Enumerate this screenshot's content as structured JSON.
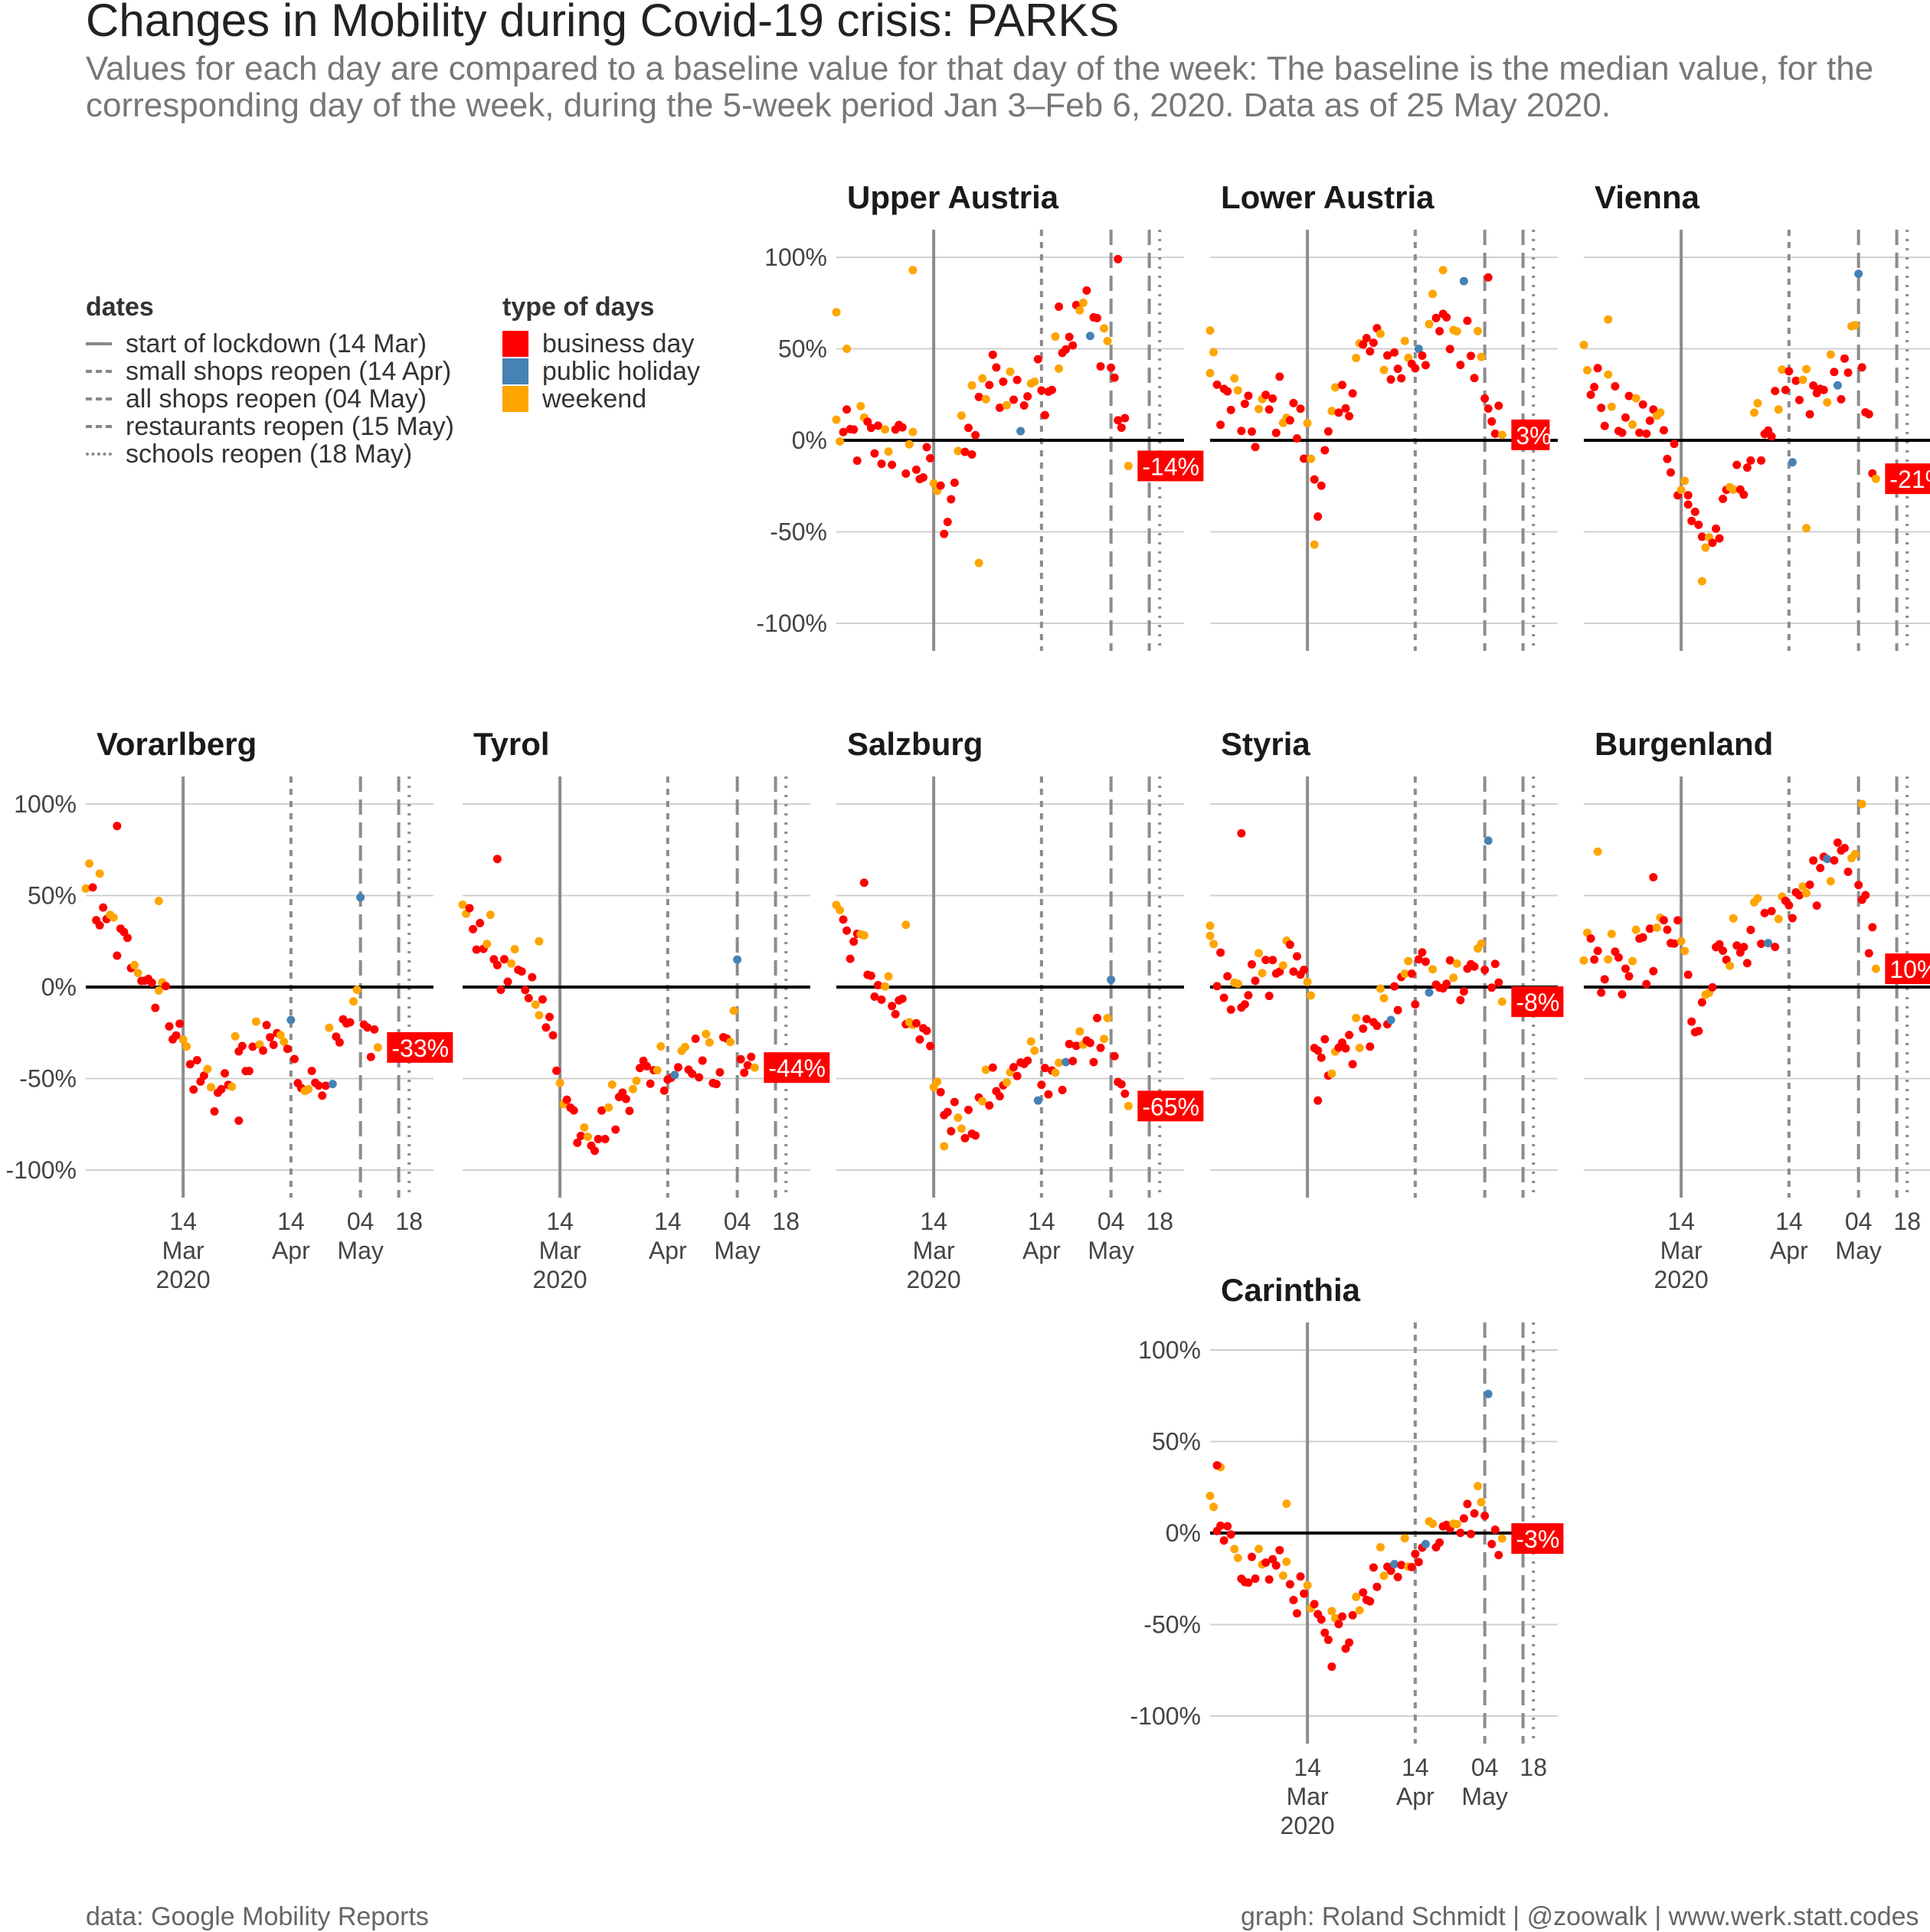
{
  "title": "Changes in Mobility during Covid-19 crisis: PARKS",
  "subtitle_line1": "Values for each day are compared to a baseline value for that day of the week: The baseline is the median value, for the",
  "subtitle_line2": "corresponding day of the week, during the 5-week period Jan 3–Feb 6, 2020. Data as of 25 May 2020.",
  "legend_dates": {
    "title": "dates",
    "items": [
      {
        "label": "start of lockdown (14 Mar)",
        "style": "solid"
      },
      {
        "label": "small shops reopen (14 Apr)",
        "style": "dashed"
      },
      {
        "label": "all shops reopen (04 May)",
        "style": "longdash"
      },
      {
        "label": "restaurants reopen (15 May)",
        "style": "longdash"
      },
      {
        "label": "schools reopen (18 May)",
        "style": "dotted"
      }
    ]
  },
  "legend_days": {
    "title": "type of days",
    "items": [
      {
        "label": "business day",
        "color": "#ff0000"
      },
      {
        "label": "public holiday",
        "color": "#4682b4"
      },
      {
        "label": "weekend",
        "color": "#ffa500"
      }
    ]
  },
  "caption_left": "data: Google Mobility Reports",
  "caption_right": "graph: Roland Schmidt | @zoowalk | www.werk.statt.codes",
  "chart_data": {
    "type": "scatter",
    "x_axis": {
      "range": [
        "2020-02-15",
        "2020-05-25"
      ],
      "ticks": [
        {
          "date": "2020-03-14",
          "lines": [
            "14",
            "Mar",
            "2020"
          ]
        },
        {
          "date": "2020-04-14",
          "lines": [
            "14",
            "Apr"
          ]
        },
        {
          "date": "2020-05-04",
          "lines": [
            "04",
            "May"
          ]
        },
        {
          "date": "2020-05-18",
          "lines": [
            "18"
          ]
        }
      ]
    },
    "y_axis": {
      "range": [
        -1.0,
        1.0
      ],
      "ticks": [
        {
          "value": 1.0,
          "label": "100%"
        },
        {
          "value": 0.5,
          "label": "50%"
        },
        {
          "value": 0.0,
          "label": "0%"
        },
        {
          "value": -0.5,
          "label": "-50%"
        },
        {
          "value": -1.0,
          "label": "-100%"
        }
      ]
    },
    "event_lines": [
      {
        "date": "2020-03-14",
        "style": "solid"
      },
      {
        "date": "2020-04-14",
        "style": "dashed"
      },
      {
        "date": "2020-05-04",
        "style": "longdash"
      },
      {
        "date": "2020-05-15",
        "style": "longdash"
      },
      {
        "date": "2020-05-18",
        "style": "dotted"
      }
    ],
    "day_type_colors": {
      "business day": "#ff0000",
      "public holiday": "#4682b4",
      "weekend": "#ffa500"
    },
    "panels": [
      {
        "name": "Upper Austria",
        "last_value": "-14%",
        "last_num": -0.14,
        "anchors": [
          [
            0,
            0.0
          ],
          [
            6,
            0.0
          ],
          [
            12,
            -0.02
          ],
          [
            20,
            -0.05
          ],
          [
            26,
            -0.18
          ],
          [
            31,
            -0.4
          ],
          [
            35,
            -0.12
          ],
          [
            40,
            0.05
          ],
          [
            45,
            0.35
          ],
          [
            50,
            0.25
          ],
          [
            55,
            0.28
          ],
          [
            60,
            0.3
          ],
          [
            65,
            0.55
          ],
          [
            72,
            0.7
          ],
          [
            78,
            0.5
          ],
          [
            84,
            -0.14
          ]
        ],
        "jitter": 0.17,
        "holidays": [
          [
            53,
            0.05
          ],
          [
            73,
            0.57
          ]
        ],
        "extra_weekend": [
          [
            0,
            0.7
          ],
          [
            3,
            0.5
          ],
          [
            22,
            0.93
          ],
          [
            39,
            0.3
          ],
          [
            41,
            -0.67
          ]
        ],
        "extra_business": [
          [
            64,
            0.73
          ],
          [
            81,
            0.99
          ]
        ]
      },
      {
        "name": "Lower Austria",
        "last_value": "3%",
        "last_num": 0.03,
        "anchors": [
          [
            0,
            0.3
          ],
          [
            6,
            0.2
          ],
          [
            12,
            0.05
          ],
          [
            20,
            0.2
          ],
          [
            26,
            0.05
          ],
          [
            31,
            -0.25
          ],
          [
            35,
            0.0
          ],
          [
            40,
            0.3
          ],
          [
            45,
            0.5
          ],
          [
            50,
            0.45
          ],
          [
            55,
            0.4
          ],
          [
            60,
            0.5
          ],
          [
            65,
            0.6
          ],
          [
            70,
            0.55
          ],
          [
            77,
            0.5
          ],
          [
            84,
            0.03
          ]
        ],
        "jitter": 0.17,
        "holidays": [
          [
            60,
            0.5
          ],
          [
            73,
            0.87
          ]
        ],
        "extra_weekend": [
          [
            0,
            0.6
          ],
          [
            30,
            -0.57
          ],
          [
            67,
            0.93
          ]
        ],
        "extra_business": [
          [
            80,
            0.89
          ]
        ]
      },
      {
        "name": "Vienna",
        "last_value": "-21%",
        "last_num": -0.21,
        "anchors": [
          [
            0,
            0.4
          ],
          [
            6,
            0.2
          ],
          [
            12,
            0.1
          ],
          [
            20,
            0.1
          ],
          [
            26,
            -0.1
          ],
          [
            31,
            -0.4
          ],
          [
            35,
            -0.6
          ],
          [
            40,
            -0.45
          ],
          [
            45,
            -0.2
          ],
          [
            50,
            0.0
          ],
          [
            55,
            0.15
          ],
          [
            60,
            0.25
          ],
          [
            65,
            0.2
          ],
          [
            72,
            0.3
          ],
          [
            78,
            0.5
          ],
          [
            84,
            -0.21
          ]
        ],
        "jitter": 0.15,
        "holidays": [
          [
            60,
            -0.12
          ],
          [
            73,
            0.3
          ],
          [
            79,
            0.91
          ]
        ],
        "extra_weekend": [
          [
            7,
            0.66
          ],
          [
            34,
            -0.77
          ],
          [
            64,
            -0.48
          ]
        ],
        "extra_business": [
          [
            30,
            -0.3
          ]
        ]
      },
      {
        "name": "Vorarlberg",
        "last_value": "-33%",
        "last_num": -0.33,
        "anchors": [
          [
            0,
            0.55
          ],
          [
            6,
            0.3
          ],
          [
            12,
            0.2
          ],
          [
            20,
            0.0
          ],
          [
            26,
            -0.2
          ],
          [
            29,
            -0.42
          ],
          [
            33,
            -0.5
          ],
          [
            38,
            -0.6
          ],
          [
            45,
            -0.4
          ],
          [
            50,
            -0.35
          ],
          [
            55,
            -0.3
          ],
          [
            60,
            -0.45
          ],
          [
            65,
            -0.55
          ],
          [
            72,
            -0.35
          ],
          [
            78,
            -0.2
          ],
          [
            84,
            -0.33
          ]
        ],
        "jitter": 0.13,
        "holidays": [
          [
            59,
            -0.18
          ],
          [
            71,
            -0.53
          ],
          [
            79,
            0.49
          ]
        ],
        "extra_weekend": [
          [
            4,
            0.62
          ],
          [
            21,
            0.47
          ]
        ],
        "extra_business": [
          [
            9,
            0.88
          ],
          [
            44,
            -0.73
          ]
        ]
      },
      {
        "name": "Tyrol",
        "last_value": "-44%",
        "last_num": -0.44,
        "anchors": [
          [
            0,
            0.35
          ],
          [
            6,
            0.3
          ],
          [
            12,
            0.05
          ],
          [
            20,
            0.0
          ],
          [
            26,
            -0.3
          ],
          [
            29,
            -0.6
          ],
          [
            33,
            -0.75
          ],
          [
            38,
            -0.8
          ],
          [
            45,
            -0.65
          ],
          [
            50,
            -0.5
          ],
          [
            55,
            -0.45
          ],
          [
            60,
            -0.45
          ],
          [
            65,
            -0.35
          ],
          [
            72,
            -0.45
          ],
          [
            78,
            -0.3
          ],
          [
            84,
            -0.44
          ]
        ],
        "jitter": 0.12,
        "holidays": [
          [
            61,
            -0.48
          ],
          [
            79,
            0.15
          ]
        ],
        "extra_weekend": [
          [
            22,
            0.25
          ]
        ],
        "extra_business": [
          [
            10,
            0.7
          ]
        ]
      },
      {
        "name": "Salzburg",
        "last_value": "-65%",
        "last_num": -0.65,
        "anchors": [
          [
            0,
            0.4
          ],
          [
            6,
            0.2
          ],
          [
            12,
            0.0
          ],
          [
            20,
            -0.2
          ],
          [
            26,
            -0.35
          ],
          [
            29,
            -0.6
          ],
          [
            33,
            -0.7
          ],
          [
            38,
            -0.75
          ],
          [
            45,
            -0.55
          ],
          [
            50,
            -0.5
          ],
          [
            55,
            -0.45
          ],
          [
            60,
            -0.5
          ],
          [
            65,
            -0.45
          ],
          [
            72,
            -0.35
          ],
          [
            78,
            -0.2
          ],
          [
            84,
            -0.65
          ]
        ],
        "jitter": 0.12,
        "holidays": [
          [
            58,
            -0.62
          ],
          [
            66,
            -0.41
          ],
          [
            79,
            0.04
          ]
        ],
        "extra_weekend": [
          [
            20,
            0.34
          ],
          [
            31,
            -0.87
          ]
        ],
        "extra_business": [
          [
            8,
            0.57
          ]
        ]
      },
      {
        "name": "Styria",
        "last_value": "-8%",
        "last_num": -0.08,
        "anchors": [
          [
            0,
            0.2
          ],
          [
            6,
            0.0
          ],
          [
            12,
            0.0
          ],
          [
            20,
            0.1
          ],
          [
            26,
            0.15
          ],
          [
            31,
            -0.3
          ],
          [
            35,
            -0.45
          ],
          [
            40,
            -0.35
          ],
          [
            45,
            -0.25
          ],
          [
            50,
            -0.15
          ],
          [
            55,
            -0.05
          ],
          [
            60,
            0.05
          ],
          [
            65,
            0.1
          ],
          [
            72,
            0.0
          ],
          [
            78,
            0.2
          ],
          [
            84,
            -0.08
          ]
        ],
        "jitter": 0.13,
        "holidays": [
          [
            52,
            -0.18
          ],
          [
            63,
            -0.03
          ],
          [
            80,
            0.8
          ]
        ],
        "extra_weekend": [
          [
            0,
            0.28
          ]
        ],
        "extra_business": [
          [
            9,
            0.84
          ],
          [
            31,
            -0.62
          ]
        ]
      },
      {
        "name": "Burgenland",
        "last_value": "10%",
        "last_num": 0.1,
        "anchors": [
          [
            0,
            0.2
          ],
          [
            6,
            0.1
          ],
          [
            12,
            0.05
          ],
          [
            20,
            0.2
          ],
          [
            26,
            0.3
          ],
          [
            30,
            0.0
          ],
          [
            33,
            -0.3
          ],
          [
            38,
            0.1
          ],
          [
            45,
            0.2
          ],
          [
            50,
            0.3
          ],
          [
            55,
            0.35
          ],
          [
            60,
            0.5
          ],
          [
            65,
            0.55
          ],
          [
            72,
            0.65
          ],
          [
            78,
            0.7
          ],
          [
            84,
            0.1
          ]
        ],
        "jitter": 0.15,
        "holidays": [
          [
            53,
            0.24
          ],
          [
            70,
            0.7
          ]
        ],
        "extra_weekend": [
          [
            4,
            0.74
          ],
          [
            80,
            1.0
          ]
        ],
        "extra_business": [
          [
            20,
            0.6
          ]
        ]
      },
      {
        "name": "Carinthia",
        "last_value": "-3%",
        "last_num": -0.03,
        "anchors": [
          [
            0,
            0.05
          ],
          [
            6,
            -0.1
          ],
          [
            12,
            -0.2
          ],
          [
            20,
            -0.2
          ],
          [
            26,
            -0.35
          ],
          [
            29,
            -0.45
          ],
          [
            33,
            -0.6
          ],
          [
            38,
            -0.55
          ],
          [
            45,
            -0.3
          ],
          [
            50,
            -0.2
          ],
          [
            55,
            -0.15
          ],
          [
            60,
            -0.1
          ],
          [
            65,
            0.0
          ],
          [
            72,
            0.05
          ],
          [
            78,
            0.1
          ],
          [
            84,
            -0.03
          ]
        ],
        "jitter": 0.12,
        "holidays": [
          [
            53,
            -0.17
          ],
          [
            62,
            -0.06
          ],
          [
            80,
            0.76
          ]
        ],
        "extra_weekend": [
          [
            3,
            0.36
          ],
          [
            22,
            0.16
          ]
        ],
        "extra_business": [
          [
            2,
            0.37
          ],
          [
            35,
            -0.73
          ]
        ]
      }
    ]
  }
}
